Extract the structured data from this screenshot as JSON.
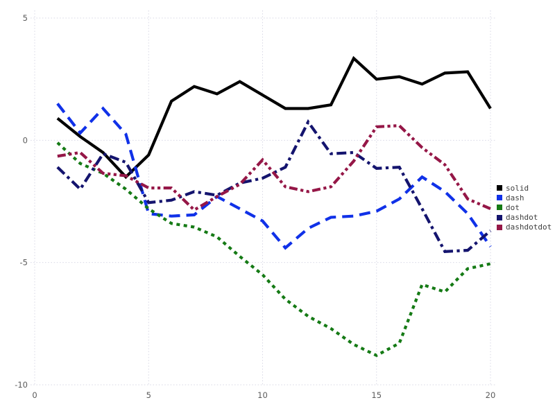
{
  "figure": {
    "background": "#ffffff",
    "grid_color": "#d9d9e6",
    "tick_label_color": "#5a5a5a",
    "legend_text_color": "#3d3d3d"
  },
  "chart_data": {
    "type": "line",
    "title": "",
    "xlabel": "",
    "ylabel": "",
    "grid": true,
    "legend_position": "right",
    "xlim": [
      0,
      20
    ],
    "ylim": [
      -10,
      5
    ],
    "x_ticks": [
      0,
      5,
      10,
      15,
      20
    ],
    "y_ticks": [
      5,
      0,
      -5,
      -10
    ],
    "x": [
      1,
      2,
      3,
      4,
      5,
      6,
      7,
      8,
      9,
      10,
      11,
      12,
      13,
      14,
      15,
      16,
      17,
      18,
      19,
      20
    ],
    "series": [
      {
        "name": "solid",
        "color": "#000000",
        "line_style": "solid",
        "values": [
          0.9,
          0.15,
          -0.5,
          -1.5,
          -0.6,
          1.6,
          2.2,
          1.9,
          2.4,
          1.85,
          1.3,
          1.3,
          1.45,
          3.35,
          2.5,
          2.6,
          2.3,
          2.75,
          2.8,
          1.3
        ]
      },
      {
        "name": "dash",
        "color": "#1031e8",
        "line_style": "dash",
        "values": [
          1.5,
          0.3,
          1.3,
          0.25,
          -3.0,
          -3.1,
          -3.05,
          -2.3,
          -2.8,
          -3.3,
          -4.4,
          -3.6,
          -3.15,
          -3.1,
          -2.9,
          -2.4,
          -1.5,
          -2.1,
          -3.0,
          -4.35
        ]
      },
      {
        "name": "dot",
        "color": "#157a15",
        "line_style": "dot",
        "values": [
          -0.1,
          -0.95,
          -1.35,
          -2.0,
          -2.8,
          -3.4,
          -3.55,
          -3.95,
          -4.75,
          -5.5,
          -6.5,
          -7.2,
          -7.7,
          -8.35,
          -8.8,
          -8.3,
          -5.9,
          -6.2,
          -5.25,
          -5.05
        ]
      },
      {
        "name": "dashdot",
        "color": "#14146e",
        "line_style": "dashdot",
        "values": [
          -1.1,
          -2.0,
          -0.55,
          -0.9,
          -2.55,
          -2.45,
          -2.1,
          -2.25,
          -1.75,
          -1.55,
          -1.1,
          0.75,
          -0.55,
          -0.5,
          -1.15,
          -1.1,
          -2.8,
          -4.55,
          -4.5,
          -3.7
        ]
      },
      {
        "name": "dashdotdot",
        "color": "#951747",
        "line_style": "dashdotdot",
        "values": [
          -0.65,
          -0.5,
          -1.35,
          -1.45,
          -1.95,
          -1.95,
          -2.85,
          -2.3,
          -1.8,
          -0.8,
          -1.9,
          -2.1,
          -1.9,
          -0.85,
          0.55,
          0.6,
          -0.3,
          -1.0,
          -2.4,
          -2.8
        ]
      }
    ]
  }
}
